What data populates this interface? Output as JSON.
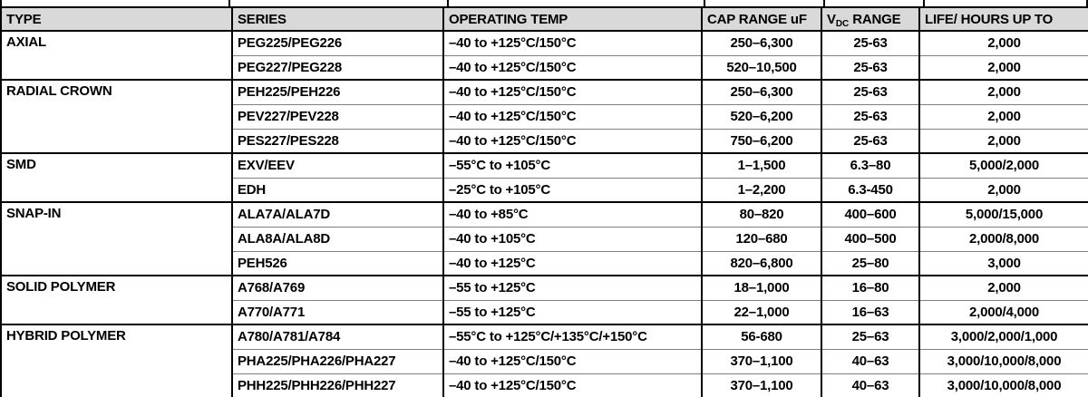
{
  "header_bg": "#d9d9d9",
  "table": {
    "columns": [
      {
        "key": "type",
        "label": "TYPE"
      },
      {
        "key": "series",
        "label": "SERIES"
      },
      {
        "key": "temp",
        "label": "OPERATING TEMP"
      },
      {
        "key": "cap",
        "label": "CAP RANGE uF"
      },
      {
        "key": "vdc",
        "label_pre": "V",
        "label_sub": "DC",
        "label_post": " RANGE"
      },
      {
        "key": "life",
        "label": "LIFE/ HOURS UP TO"
      }
    ],
    "groups": [
      {
        "type": "AXIAL",
        "rows": [
          {
            "series": "PEG225/PEG226",
            "temp": "–40 to +125°C/150°C",
            "cap": "250–6,300",
            "vdc": "25-63",
            "life": "2,000"
          },
          {
            "series": "PEG227/PEG228",
            "temp": "–40 to +125°C/150°C",
            "cap": "520–10,500",
            "vdc": "25-63",
            "life": "2,000"
          }
        ]
      },
      {
        "type": "RADIAL CROWN",
        "rows": [
          {
            "series": "PEH225/PEH226",
            "temp": "–40 to +125°C/150°C",
            "cap": "250–6,300",
            "vdc": "25-63",
            "life": "2,000"
          },
          {
            "series": "PEV227/PEV228",
            "temp": "–40 to +125°C/150°C",
            "cap": "520–6,200",
            "vdc": "25-63",
            "life": "2,000"
          },
          {
            "series": "PES227/PES228",
            "temp": "–40 to +125°C/150°C",
            "cap": "750–6,200",
            "vdc": "25-63",
            "life": "2,000"
          }
        ]
      },
      {
        "type": "SMD",
        "rows": [
          {
            "series": "EXV/EEV",
            "temp": "–55°C to +105°C",
            "cap": "1–1,500",
            "vdc": "6.3–80",
            "life": "5,000/2,000"
          },
          {
            "series": "EDH",
            "temp": "–25°C to +105°C",
            "cap": "1–2,200",
            "vdc": "6.3-450",
            "life": "2,000"
          }
        ]
      },
      {
        "type": "SNAP-IN",
        "rows": [
          {
            "series": "ALA7A/ALA7D",
            "temp": "–40 to +85°C",
            "cap": "80–820",
            "vdc": "400–600",
            "life": "5,000/15,000"
          },
          {
            "series": "ALA8A/ALA8D",
            "temp": "–40 to +105°C",
            "cap": "120–680",
            "vdc": "400–500",
            "life": "2,000/8,000"
          },
          {
            "series": "PEH526",
            "temp": "–40 to +125°C",
            "cap": "820–6,800",
            "vdc": "25–80",
            "life": "3,000"
          }
        ]
      },
      {
        "type": "SOLID POLYMER",
        "rows": [
          {
            "series": "A768/A769",
            "temp": "–55 to +125°C",
            "cap": "18–1,000",
            "vdc": "16–80",
            "life": "2,000"
          },
          {
            "series": "A770/A771",
            "temp": "–55 to +125°C",
            "cap": "22–1,000",
            "vdc": "16–63",
            "life": "2,000/4,000"
          }
        ]
      },
      {
        "type": "HYBRID POLYMER",
        "rows": [
          {
            "series": "A780/A781/A784",
            "temp": "–55°C to +125°C/+135°C/+150°C",
            "cap": "56-680",
            "vdc": "25–63",
            "life": "3,000/2,000/1,000"
          },
          {
            "series": "PHA225/PHA226/PHA227",
            "temp": "–40 to +125°C/150°C",
            "cap": "370–1,100",
            "vdc": "40–63",
            "life": "3,000/10,000/8,000"
          },
          {
            "series": "PHH225/PHH226/PHH227",
            "temp": "–40 to +125°C/150°C",
            "cap": "370–1,100",
            "vdc": "40–63",
            "life": "3,000/10,000/8,000"
          }
        ]
      }
    ]
  }
}
